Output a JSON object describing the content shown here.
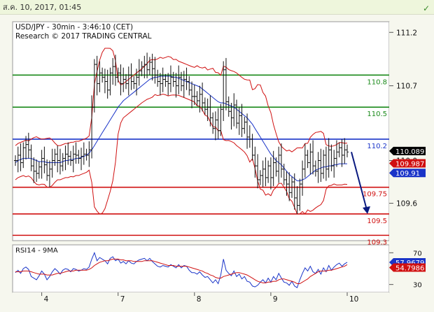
{
  "header": {
    "datetime": "ส.ค. 10, 2017, 01:45",
    "check_icon": "check-icon"
  },
  "chart_data": [
    {
      "type": "line",
      "title": "USD/JPY - 30min - 3:46:10 (CET)",
      "subtitle": "Research © 2017 TRADING CENTRAL",
      "ylim": [
        109.25,
        111.3
      ],
      "yticks": [
        "111.2",
        "110.7",
        "110.0",
        "109.6"
      ],
      "ytick_values": [
        111.2,
        110.7,
        110.0,
        109.6
      ],
      "xticks": [
        "4",
        "7",
        "8",
        "9",
        "10"
      ],
      "xtick_index": [
        10,
        39,
        68,
        97,
        126
      ],
      "levels": [
        {
          "label": "110.8",
          "value": 110.8,
          "color": "#1a8a1a"
        },
        {
          "label": "110.5",
          "value": 110.5,
          "color": "#1a8a1a"
        },
        {
          "label": "110.2",
          "value": 110.2,
          "color": "#1a34c8"
        },
        {
          "label": "109.75",
          "value": 109.75,
          "color": "#d01010"
        },
        {
          "label": "109.5",
          "value": 109.5,
          "color": "#d01010"
        },
        {
          "label": "109.3",
          "value": 109.3,
          "color": "#d01010"
        }
      ],
      "price_boxes": [
        {
          "label": "110.089",
          "value": 110.089,
          "bg": "#000000",
          "fg": "#ffffff"
        },
        {
          "label": "109.987",
          "value": 109.987,
          "bg": "#d01010",
          "fg": "#ffffff"
        },
        {
          "label": "109.91",
          "value": 109.91,
          "bg": "#1a34c8",
          "fg": "#ffffff"
        }
      ],
      "forecast_arrow": {
        "from_value": 110.08,
        "to_value": 109.5
      },
      "close": [
        110.0,
        110.05,
        109.98,
        110.12,
        110.15,
        110.1,
        109.95,
        109.9,
        109.88,
        109.94,
        110.02,
        109.96,
        109.86,
        109.92,
        110.0,
        110.06,
        110.0,
        109.95,
        110.02,
        110.06,
        110.04,
        110.0,
        110.06,
        110.05,
        110.02,
        110.04,
        110.06,
        110.05,
        110.1,
        110.5,
        110.9,
        110.72,
        110.82,
        110.78,
        110.74,
        110.66,
        110.82,
        110.88,
        110.78,
        110.82,
        110.72,
        110.76,
        110.72,
        110.8,
        110.74,
        110.72,
        110.78,
        110.84,
        110.88,
        110.9,
        110.85,
        110.92,
        110.86,
        110.8,
        110.74,
        110.72,
        110.76,
        110.74,
        110.72,
        110.78,
        110.74,
        110.7,
        110.78,
        110.7,
        110.76,
        110.74,
        110.66,
        110.6,
        110.6,
        110.56,
        110.62,
        110.54,
        110.48,
        110.5,
        110.4,
        110.3,
        110.38,
        110.28,
        110.48,
        110.85,
        110.55,
        110.46,
        110.4,
        110.52,
        110.35,
        110.42,
        110.3,
        110.36,
        110.22,
        110.2,
        110.05,
        109.95,
        109.82,
        109.86,
        109.92,
        109.84,
        109.95,
        109.84,
        109.98,
        109.9,
        110.05,
        109.92,
        109.82,
        109.78,
        109.7,
        109.8,
        109.65,
        109.58,
        109.78,
        109.92,
        110.05,
        109.98,
        110.08,
        109.95,
        109.9,
        110.0,
        109.88,
        110.05,
        109.92,
        110.1,
        109.95,
        110.02,
        110.08,
        110.12,
        110.05,
        110.1,
        110.08
      ],
      "ma": [
        109.98,
        110.0,
        110.01,
        110.02,
        110.02,
        110.02,
        110.02,
        110.01,
        110.0,
        109.99,
        109.99,
        109.99,
        109.98,
        109.98,
        109.98,
        109.98,
        109.98,
        109.98,
        109.99,
        110.0,
        110.0,
        110.01,
        110.01,
        110.02,
        110.02,
        110.03,
        110.04,
        110.05,
        110.07,
        110.1,
        110.14,
        110.18,
        110.22,
        110.26,
        110.3,
        110.34,
        110.38,
        110.42,
        110.46,
        110.5,
        110.53,
        110.56,
        110.58,
        110.6,
        110.62,
        110.64,
        110.66,
        110.68,
        110.7,
        110.72,
        110.74,
        110.76,
        110.77,
        110.78,
        110.78,
        110.79,
        110.79,
        110.79,
        110.79,
        110.79,
        110.78,
        110.78,
        110.77,
        110.76,
        110.75,
        110.74,
        110.73,
        110.72,
        110.71,
        110.7,
        110.69,
        110.67,
        110.65,
        110.63,
        110.61,
        110.59,
        110.57,
        110.55,
        110.54,
        110.54,
        110.53,
        110.52,
        110.51,
        110.5,
        110.48,
        110.46,
        110.44,
        110.42,
        110.4,
        110.37,
        110.34,
        110.3,
        110.26,
        110.22,
        110.18,
        110.14,
        110.1,
        110.06,
        110.03,
        110.0,
        109.98,
        109.96,
        109.93,
        109.9,
        109.87,
        109.85,
        109.83,
        109.81,
        109.81,
        109.82,
        109.83,
        109.85,
        109.87,
        109.89,
        109.91,
        109.92,
        109.93,
        109.94,
        109.94,
        109.95,
        109.95,
        109.96,
        109.96,
        109.97,
        109.97,
        109.97,
        109.97
      ]
    },
    {
      "type": "line",
      "title": "RSI14 - 9MA",
      "ylim": [
        20,
        80
      ],
      "yticks": [
        "70",
        "30"
      ],
      "ytick_values": [
        70,
        30
      ],
      "price_boxes": [
        {
          "label": "57.9679",
          "value": 57.9679,
          "bg": "#1a34c8",
          "fg": "#ffffff"
        },
        {
          "label": "54.7986",
          "value": 54.7986,
          "bg": "#d01010",
          "fg": "#ffffff"
        }
      ],
      "series": [
        {
          "name": "RSI14",
          "color": "#1a34c8",
          "values": [
            45,
            48,
            44,
            50,
            52,
            49,
            40,
            38,
            36,
            41,
            47,
            43,
            36,
            40,
            46,
            50,
            47,
            43,
            48,
            50,
            49,
            46,
            50,
            49,
            47,
            48,
            50,
            49,
            52,
            62,
            70,
            60,
            64,
            62,
            60,
            56,
            63,
            65,
            60,
            62,
            57,
            59,
            56,
            60,
            57,
            56,
            59,
            61,
            62,
            63,
            60,
            63,
            59,
            56,
            53,
            52,
            54,
            53,
            52,
            55,
            53,
            51,
            55,
            51,
            54,
            53,
            48,
            45,
            45,
            43,
            46,
            42,
            39,
            40,
            36,
            32,
            36,
            31,
            42,
            62,
            48,
            44,
            41,
            47,
            40,
            43,
            37,
            40,
            34,
            33,
            28,
            27,
            29,
            33,
            36,
            32,
            38,
            33,
            40,
            36,
            44,
            38,
            33,
            32,
            29,
            34,
            28,
            26,
            36,
            44,
            51,
            47,
            53,
            46,
            44,
            49,
            43,
            51,
            46,
            54,
            48,
            52,
            55,
            57,
            53,
            56,
            58
          ]
        },
        {
          "name": "9MA",
          "color": "#d01010",
          "values": [
            46,
            46,
            46,
            47,
            47,
            47,
            46,
            45,
            44,
            43,
            43,
            43,
            42,
            42,
            42,
            43,
            44,
            44,
            45,
            46,
            47,
            47,
            47,
            48,
            48,
            48,
            48,
            48,
            49,
            51,
            54,
            56,
            58,
            59,
            60,
            60,
            61,
            62,
            62,
            62,
            61,
            61,
            60,
            60,
            60,
            59,
            59,
            59,
            59,
            60,
            60,
            60,
            60,
            59,
            58,
            57,
            56,
            55,
            54,
            54,
            54,
            53,
            53,
            53,
            53,
            53,
            52,
            51,
            50,
            49,
            48,
            47,
            45,
            44,
            42,
            41,
            39,
            38,
            38,
            40,
            41,
            42,
            43,
            44,
            45,
            45,
            44,
            43,
            42,
            40,
            38,
            36,
            34,
            33,
            32,
            32,
            33,
            33,
            34,
            34,
            36,
            37,
            37,
            36,
            35,
            34,
            33,
            31,
            31,
            33,
            35,
            37,
            40,
            42,
            44,
            46,
            47,
            47,
            47,
            48,
            48,
            49,
            50,
            51,
            52,
            53,
            55
          ]
        }
      ]
    }
  ]
}
